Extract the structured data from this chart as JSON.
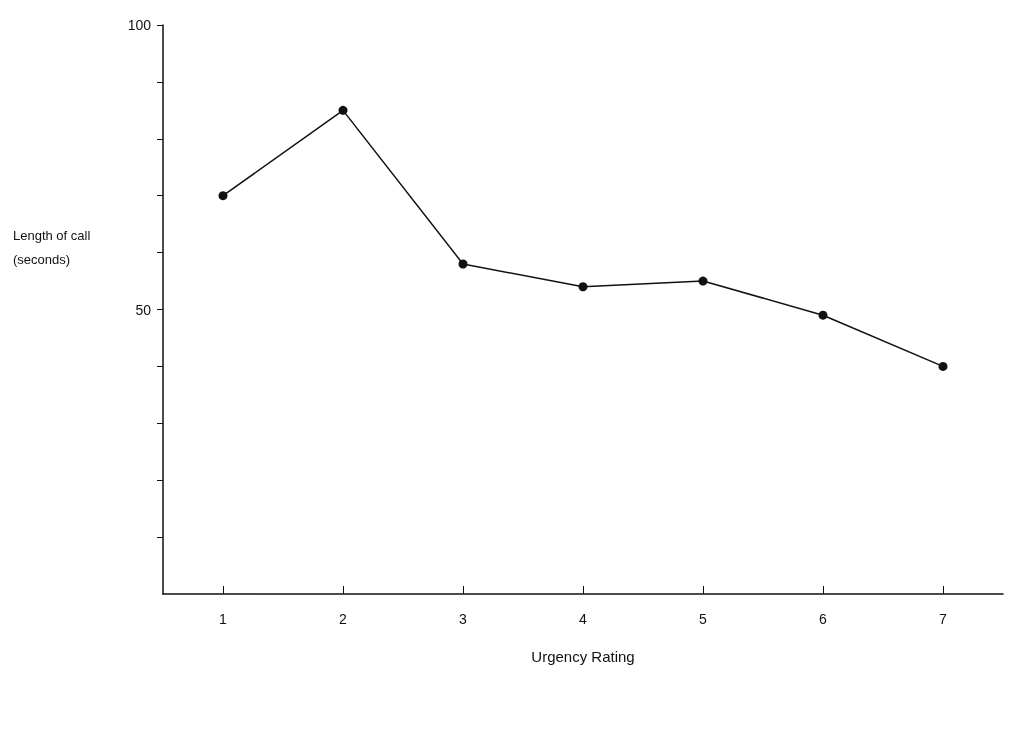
{
  "chart_data": {
    "type": "line",
    "xlabel": "Urgency Rating",
    "ylabel": "Length of call (seconds)",
    "categories": [
      "1",
      "2",
      "3",
      "4",
      "5",
      "6",
      "7"
    ],
    "series": [
      {
        "color": "#111111",
        "values": [
          70,
          85,
          58,
          54,
          55,
          49,
          40
        ]
      }
    ],
    "ylim": [
      0,
      100
    ],
    "yticks": [
      {
        "value": 10,
        "label": null
      },
      {
        "value": 20,
        "label": null
      },
      {
        "value": 30,
        "label": null
      },
      {
        "value": 40,
        "label": null
      },
      50,
      {
        "value": 60,
        "label": null
      },
      {
        "value": 70,
        "label": null
      },
      {
        "value": 80,
        "label": null
      },
      {
        "value": 90,
        "label": null
      },
      100
    ],
    "grid": false,
    "marker": "circle",
    "line_style": "solid"
  }
}
